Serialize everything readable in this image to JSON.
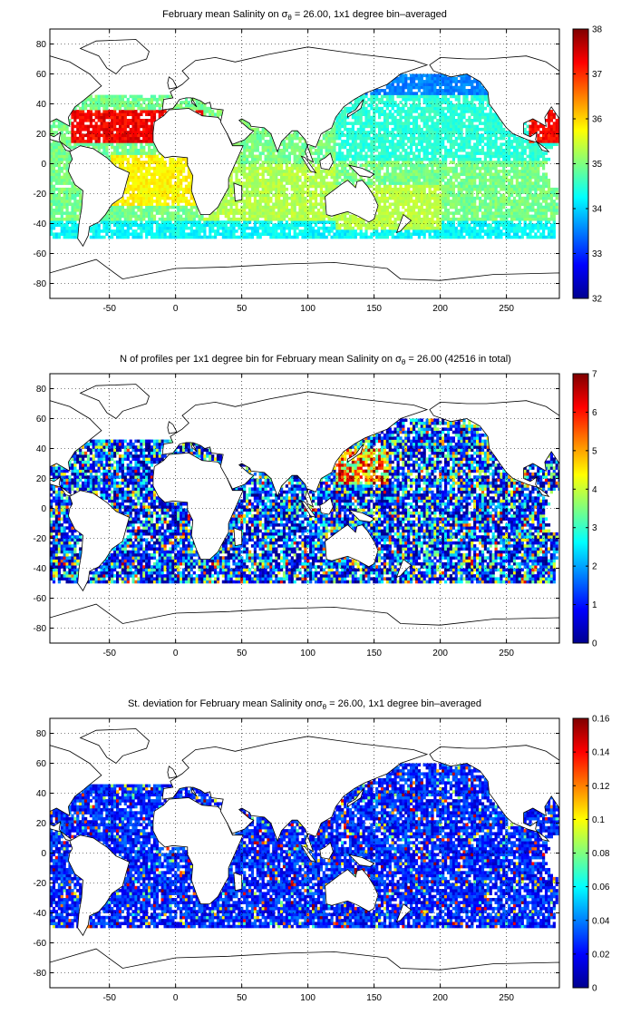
{
  "chart_data": [
    {
      "type": "heatmap",
      "title_parts": {
        "prefix": "February mean Salinity on ",
        "sigma": "σ",
        "sub": "θ",
        "suffix": " = 26.00, 1x1 degree bin–averaged"
      },
      "xlim": [
        -95,
        290
      ],
      "ylim": [
        -90,
        90
      ],
      "xticks": [
        -50,
        0,
        50,
        100,
        150,
        200,
        250
      ],
      "yticks": [
        -80,
        -60,
        -40,
        -20,
        0,
        20,
        40,
        60,
        80
      ],
      "grid": true,
      "colormap": "jet",
      "clim": [
        32,
        38
      ],
      "colorbar_ticks": [
        32,
        33,
        34,
        35,
        36,
        37,
        38
      ]
    },
    {
      "type": "heatmap",
      "title_parts": {
        "prefix": "N of profiles per 1x1 degree bin for February mean Salinity on ",
        "sigma": "σ",
        "sub": "θ",
        "suffix": " = 26.00 (42516 in total)"
      },
      "xlim": [
        -95,
        290
      ],
      "ylim": [
        -90,
        90
      ],
      "xticks": [
        -50,
        0,
        50,
        100,
        150,
        200,
        250
      ],
      "yticks": [
        -80,
        -60,
        -40,
        -20,
        0,
        20,
        40,
        60,
        80
      ],
      "grid": true,
      "colormap": "jet",
      "clim": [
        0,
        7
      ],
      "colorbar_ticks": [
        0,
        1,
        2,
        3,
        4,
        5,
        6,
        7
      ]
    },
    {
      "type": "heatmap",
      "title_parts": {
        "prefix": "St. deviation for February mean Salinity on",
        "sigma": "σ",
        "sub": "θ",
        "suffix": " = 26.00, 1x1 degree bin–averaged"
      },
      "xlim": [
        -95,
        290
      ],
      "ylim": [
        -90,
        90
      ],
      "xticks": [
        -50,
        0,
        50,
        100,
        150,
        200,
        250
      ],
      "yticks": [
        -80,
        -60,
        -40,
        -20,
        0,
        20,
        40,
        60,
        80
      ],
      "grid": true,
      "colormap": "jet",
      "clim": [
        0,
        0.16
      ],
      "colorbar_ticks": [
        0,
        0.02,
        0.04,
        0.06,
        0.08,
        0.1,
        0.12,
        0.14,
        0.16
      ]
    }
  ]
}
